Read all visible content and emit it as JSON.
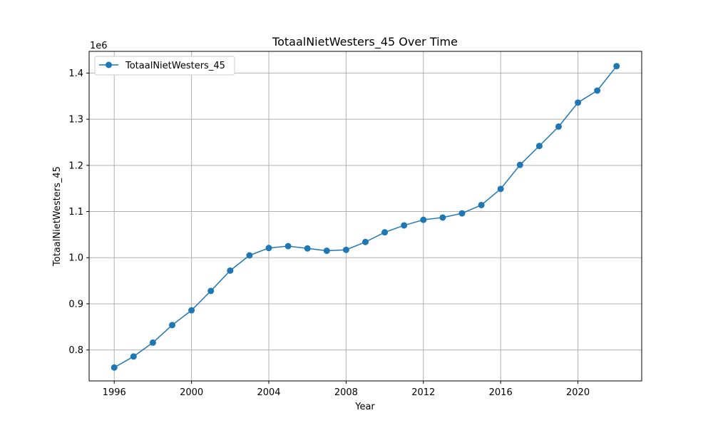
{
  "chart_data": {
    "type": "line",
    "title": "TotaalNietWesters_45 Over Time",
    "xlabel": "Year",
    "ylabel": "TotaalNietWesters_45",
    "y_offset_label": "1e6",
    "x_ticks": [
      1996,
      2000,
      2004,
      2008,
      2012,
      2016,
      2020
    ],
    "x_tick_labels": [
      "1996",
      "2000",
      "2004",
      "2008",
      "2012",
      "2016",
      "2020"
    ],
    "y_ticks": [
      0.8,
      0.9,
      1.0,
      1.1,
      1.2,
      1.3,
      1.4
    ],
    "y_tick_labels": [
      "0.8",
      "0.9",
      "1.0",
      "1.1",
      "1.2",
      "1.3",
      "1.4"
    ],
    "xlim": [
      1994.7,
      2023.3
    ],
    "ylim": [
      733000,
      1447000
    ],
    "grid": true,
    "legend_position": "upper-left",
    "series": [
      {
        "name": "TotaalNietWesters_45",
        "color": "#1f77b4",
        "marker": "circle",
        "x": [
          1996,
          1997,
          1998,
          1999,
          2000,
          2001,
          2002,
          2003,
          2004,
          2005,
          2006,
          2007,
          2008,
          2009,
          2010,
          2011,
          2012,
          2013,
          2014,
          2015,
          2016,
          2017,
          2018,
          2019,
          2020,
          2021,
          2022
        ],
        "values": [
          762000,
          786000,
          816000,
          854000,
          886000,
          928000,
          972000,
          1005000,
          1021000,
          1025000,
          1020000,
          1015000,
          1017000,
          1034000,
          1055000,
          1070000,
          1082000,
          1087000,
          1096000,
          1114000,
          1149000,
          1201000,
          1242000,
          1284000,
          1336000,
          1362000,
          1415000
        ]
      }
    ]
  }
}
